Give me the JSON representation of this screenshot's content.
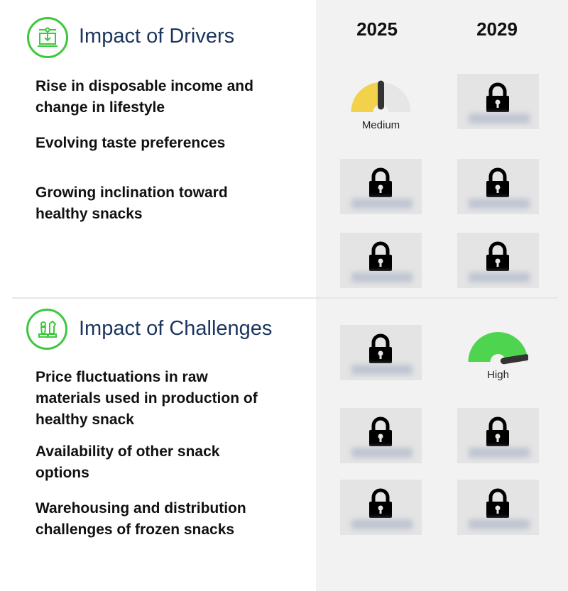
{
  "years": [
    "2025",
    "2029"
  ],
  "drivers": {
    "title": "Impact of Drivers",
    "icon": "laptop-circuit-icon",
    "items": [
      {
        "label": "Rise in disposable income and change in lifestyle",
        "impact_2025": {
          "level": "Medium",
          "fraction": 0.5,
          "color": "#f2d14b"
        },
        "impact_2029": "locked"
      },
      {
        "label": "Evolving taste preferences",
        "impact_2025": "locked",
        "impact_2029": "locked"
      },
      {
        "label": "Growing inclination toward healthy snacks",
        "impact_2025": "locked",
        "impact_2029": "locked"
      }
    ]
  },
  "challenges": {
    "title": "Impact of Challenges",
    "icon": "chess-pieces-icon",
    "items": [
      {
        "label": "Price fluctuations in raw materials used in production of healthy snack",
        "impact_2025": "locked",
        "impact_2029": {
          "level": "High",
          "fraction": 0.95,
          "color": "#4fd44f"
        }
      },
      {
        "label": "Availability of other snack options",
        "impact_2025": "locked",
        "impact_2029": "locked"
      },
      {
        "label": "Warehousing and distribution challenges of frozen snacks",
        "impact_2025": "locked",
        "impact_2029": "locked"
      }
    ]
  },
  "colors": {
    "accent_green": "#3cc83c",
    "title_navy": "#1c355e",
    "gauge_track": "#e6e6e6",
    "needle": "#333333"
  }
}
